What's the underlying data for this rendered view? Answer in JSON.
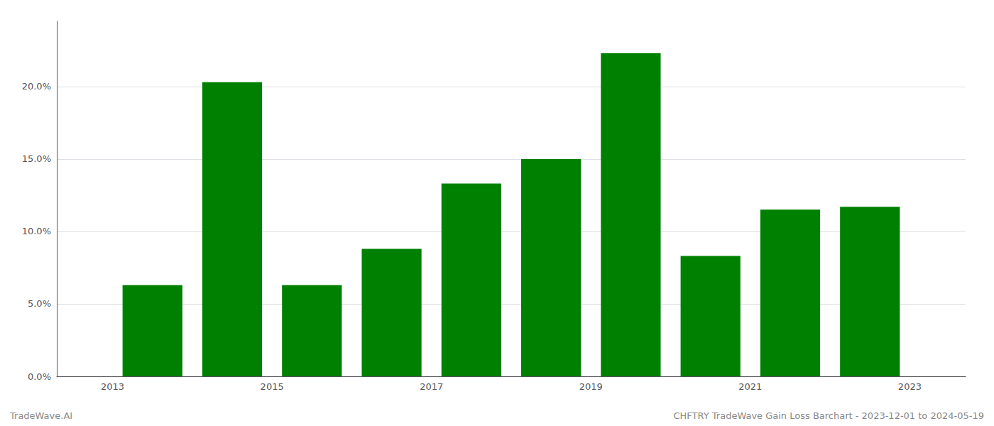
{
  "chart_data": {
    "type": "bar",
    "x": [
      2013.5,
      2014.5,
      2015.5,
      2016.5,
      2017.5,
      2018.5,
      2019.5,
      2020.5,
      2021.5,
      2022.5
    ],
    "values": [
      0.063,
      0.203,
      0.063,
      0.088,
      0.133,
      0.15,
      0.223,
      0.083,
      0.115,
      0.117
    ],
    "color": "#008000",
    "xlim": [
      2012.3,
      2023.7
    ],
    "xticks": [
      2013,
      2015,
      2017,
      2019,
      2021,
      2023
    ],
    "ylim": [
      0,
      0.245
    ],
    "yticks": [
      {
        "value": 0.0,
        "label": "0.0%"
      },
      {
        "value": 0.05,
        "label": "5.0%"
      },
      {
        "value": 0.1,
        "label": "10.0%"
      },
      {
        "value": 0.15,
        "label": "15.0%"
      },
      {
        "value": 0.2,
        "label": "20.0%"
      }
    ],
    "grid": true,
    "annotations": [
      "TradeWave.AI",
      "CHFTRY TradeWave Gain Loss Barchart - 2023-12-01 to 2024-05-19"
    ]
  }
}
